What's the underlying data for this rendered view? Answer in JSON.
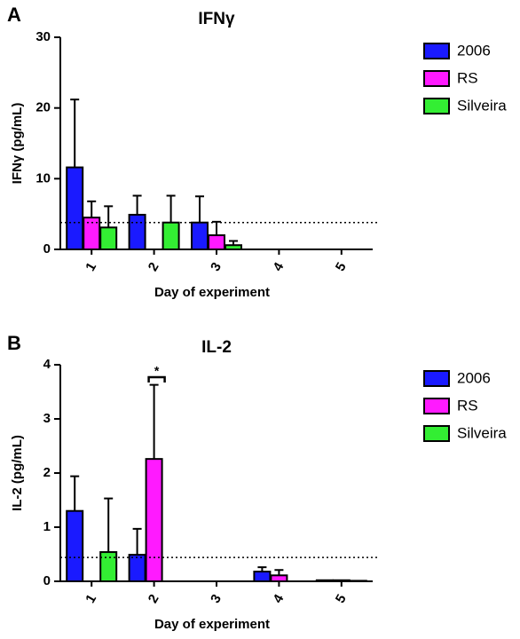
{
  "chart_data": [
    {
      "type": "bar",
      "panel": "A",
      "title": "IFNγ",
      "x_label": "Day of experiment",
      "y_label": "IFNγ (pg/mL)",
      "categories": [
        "1",
        "2",
        "3",
        "4",
        "5"
      ],
      "series": [
        {
          "name": "2006",
          "color": "#1a1aff",
          "values": [
            11.6,
            4.9,
            3.8,
            0,
            0
          ],
          "errors": [
            9.6,
            2.7,
            3.7,
            0,
            0
          ]
        },
        {
          "name": "RS",
          "color": "#ff1aff",
          "values": [
            4.5,
            0,
            2.0,
            0,
            0
          ],
          "errors": [
            2.3,
            0,
            1.9,
            0,
            0
          ]
        },
        {
          "name": "Silveira",
          "color": "#33ee33",
          "values": [
            3.1,
            3.8,
            0.6,
            0,
            0
          ],
          "errors": [
            3.0,
            3.8,
            0.6,
            0,
            0
          ]
        }
      ],
      "threshold": 3.8,
      "ylim": [
        0,
        30
      ],
      "yticks": [
        0,
        10,
        20,
        30
      ],
      "legend": "right"
    },
    {
      "type": "bar",
      "panel": "B",
      "title": "IL-2",
      "x_label": "Day of experiment",
      "y_label": "IL-2 (pg/mL)",
      "categories": [
        "1",
        "2",
        "3",
        "4",
        "5"
      ],
      "series": [
        {
          "name": "2006",
          "color": "#1a1aff",
          "values": [
            1.3,
            0.49,
            0,
            0.18,
            0.02
          ],
          "errors": [
            0.64,
            0.48,
            0,
            0.08,
            0
          ]
        },
        {
          "name": "RS",
          "color": "#ff1aff",
          "values": [
            0,
            2.26,
            0,
            0.11,
            0.02
          ],
          "errors": [
            0,
            1.37,
            0,
            0.1,
            0
          ]
        },
        {
          "name": "Silveira",
          "color": "#33ee33",
          "values": [
            0.54,
            0,
            0,
            0,
            0.01
          ],
          "errors": [
            0.99,
            0,
            0,
            0,
            0
          ]
        }
      ],
      "annotation": {
        "text": "*",
        "category": "2"
      },
      "threshold": 0.44,
      "ylim": [
        0,
        4
      ],
      "yticks": [
        0,
        1,
        2,
        3,
        4
      ],
      "legend": "right"
    }
  ]
}
